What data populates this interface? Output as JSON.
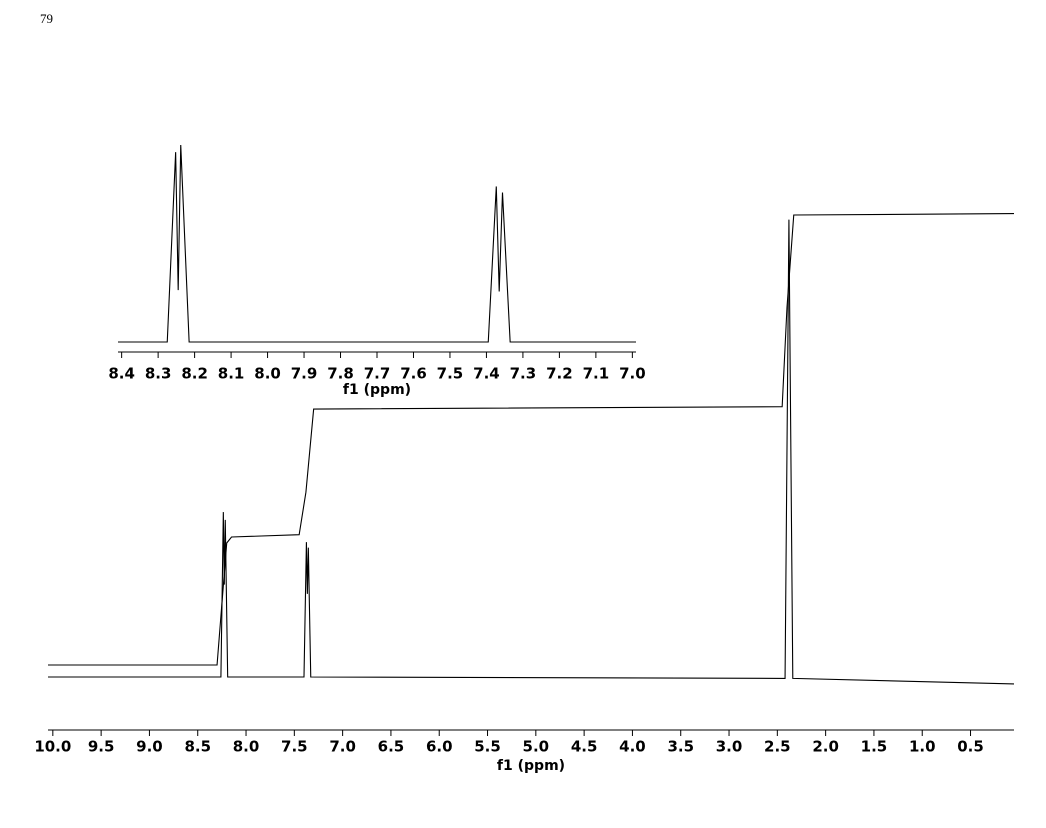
{
  "page_number": "79",
  "chart_data": [
    {
      "type": "line",
      "x_label": "f1 (ppm)",
      "xlim": [
        10.05,
        0.05
      ],
      "ylim": [
        0,
        100
      ],
      "xticks": [
        {
          "value": 10,
          "label": "10.0"
        },
        9.5,
        {
          "value": 9,
          "label": "9.0"
        },
        8.5,
        {
          "value": 8,
          "label": "8.0"
        },
        7.5,
        {
          "value": 7,
          "label": "7.0"
        },
        6.5,
        {
          "value": 6,
          "label": "6.0"
        },
        5.5,
        {
          "value": 5,
          "label": "5.0"
        },
        4.5,
        {
          "value": 4,
          "label": "4.0"
        },
        3.5,
        {
          "value": 3,
          "label": "3.0"
        },
        2.5,
        {
          "value": 2,
          "label": "2.0"
        },
        1.5,
        {
          "value": 1,
          "label": "1.0"
        },
        0.5
      ],
      "series": [
        {
          "color": "#000000",
          "x": [
            10.05,
            8.26,
            8.235,
            8.225,
            8.215,
            8.19,
            7.4,
            7.375,
            7.365,
            7.355,
            7.33,
            2.42,
            2.38,
            2.34,
            0.05
          ],
          "values": [
            0,
            0,
            35.7,
            20,
            34,
            0,
            0,
            29.2,
            18,
            28,
            0,
            -0.3,
            99,
            -0.3,
            -1.5
          ]
        },
        {
          "color": "#000000",
          "x": [
            10.05,
            8.3,
            8.2,
            8.15,
            7.45,
            7.38,
            7.3,
            2.45,
            2.4,
            2.33,
            0.05
          ],
          "values": [
            2.6,
            2.6,
            29,
            30.3,
            30.8,
            40,
            58,
            58.5,
            80,
            100,
            100.3
          ]
        }
      ]
    },
    {
      "type": "line",
      "x_label": "f1 (ppm)",
      "xlim": [
        8.41,
        6.99
      ],
      "ylim": [
        0,
        100
      ],
      "xticks": [
        8.4,
        8.3,
        8.2,
        8.1,
        {
          "value": 8,
          "label": "8.0"
        },
        7.9,
        7.8,
        7.7,
        7.6,
        7.5,
        7.4,
        7.3,
        7.2,
        7.1,
        {
          "value": 7,
          "label": "7.0"
        }
      ],
      "series": [
        {
          "color": "#000000",
          "x": [
            8.41,
            8.275,
            8.252,
            8.245,
            8.238,
            8.215,
            7.395,
            7.373,
            7.365,
            7.356,
            7.335,
            6.99
          ],
          "values": [
            0,
            0,
            94,
            25.7,
            97.5,
            0,
            0,
            77,
            25,
            74,
            0,
            0
          ]
        }
      ]
    }
  ]
}
